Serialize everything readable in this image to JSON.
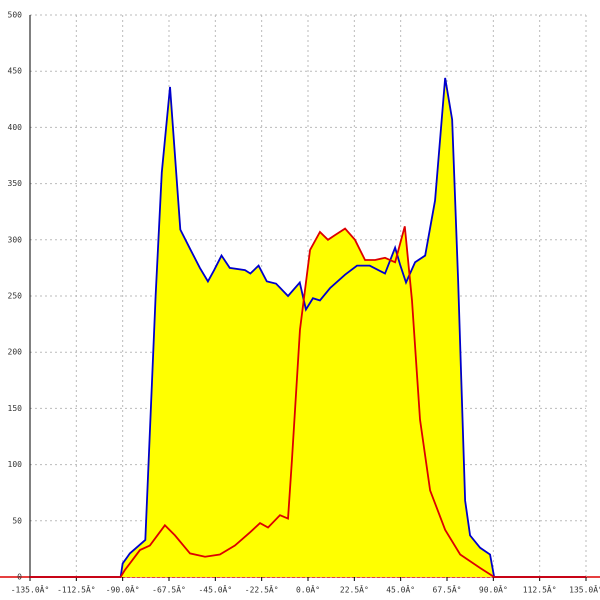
{
  "chart_data": {
    "type": "area",
    "xlim": [
      -135,
      135
    ],
    "ylim": [
      0,
      500
    ],
    "xticks": [
      {
        "value": -135,
        "label": "-135.0Â°"
      },
      {
        "value": -112.5,
        "label": "-112.5Â°"
      },
      {
        "value": -90,
        "label": "-90.0Â°"
      },
      {
        "value": -67.5,
        "label": "-67.5Â°"
      },
      {
        "value": -45,
        "label": "-45.0Â°"
      },
      {
        "value": -22.5,
        "label": "-22.5Â°"
      },
      {
        "value": 0,
        "label": "0.0Â°"
      },
      {
        "value": 22.5,
        "label": "22.5Â°"
      },
      {
        "value": 45,
        "label": "45.0Â°"
      },
      {
        "value": 67.5,
        "label": "67.5Â°"
      },
      {
        "value": 90,
        "label": "90.0Â°"
      },
      {
        "value": 112.5,
        "label": "112.5Â°"
      },
      {
        "value": 135,
        "label": "135.0Â°"
      }
    ],
    "yticks": [
      0,
      50,
      100,
      150,
      200,
      250,
      300,
      350,
      400,
      450,
      500
    ],
    "grid": true,
    "fill_color": "#ffff00",
    "series": [
      {
        "color": "#0000cc",
        "x": [
          -135,
          -91,
          -90,
          -86.5,
          -79,
          -74,
          -71,
          -67,
          -62,
          -57,
          -52.5,
          -48.6,
          -45.6,
          -42,
          -38,
          -30.6,
          -28,
          -24,
          -20,
          -15.5,
          -9.7,
          -4,
          -1,
          2.4,
          5.8,
          10.7,
          18,
          23.8,
          30,
          37.4,
          42.3,
          44.7,
          47.6,
          52,
          56.9,
          61.7,
          66.6,
          70,
          72.9,
          76.3,
          78.7,
          83.6,
          88.4,
          90.4,
          135
        ],
        "values": [
          0,
          0,
          12,
          21,
          33,
          250,
          360,
          436,
          309,
          291,
          275,
          263,
          273,
          286,
          275,
          273,
          270,
          277,
          263,
          261,
          250,
          262,
          238,
          248,
          246,
          257,
          269,
          277,
          277,
          270,
          293,
          278,
          262,
          280,
          286,
          335,
          444,
          407,
          264,
          68,
          37,
          26,
          20,
          0,
          0
        ]
      },
      {
        "color": "#dd0000",
        "x": [
          -135,
          -91,
          -89,
          -81.6,
          -76.8,
          -69.5,
          -64.6,
          -57.3,
          -50,
          -42.8,
          -35.5,
          -28,
          -23.3,
          -19.4,
          -13.6,
          -9.7,
          -7.8,
          -3.9,
          1,
          5.8,
          9.7,
          13,
          18,
          22.8,
          27.7,
          32.6,
          37.4,
          42.3,
          47,
          50.5,
          54.4,
          59.3,
          66.6,
          73.9,
          83.6,
          90.4,
          135
        ],
        "values": [
          0,
          0,
          6,
          24,
          28,
          46,
          37,
          21,
          18,
          20,
          28,
          40,
          48,
          44,
          55,
          52,
          104,
          220,
          291,
          307,
          300,
          304,
          310,
          300,
          282,
          282,
          284,
          280,
          312,
          246,
          140,
          77,
          42,
          20,
          8,
          0,
          0
        ]
      }
    ]
  }
}
